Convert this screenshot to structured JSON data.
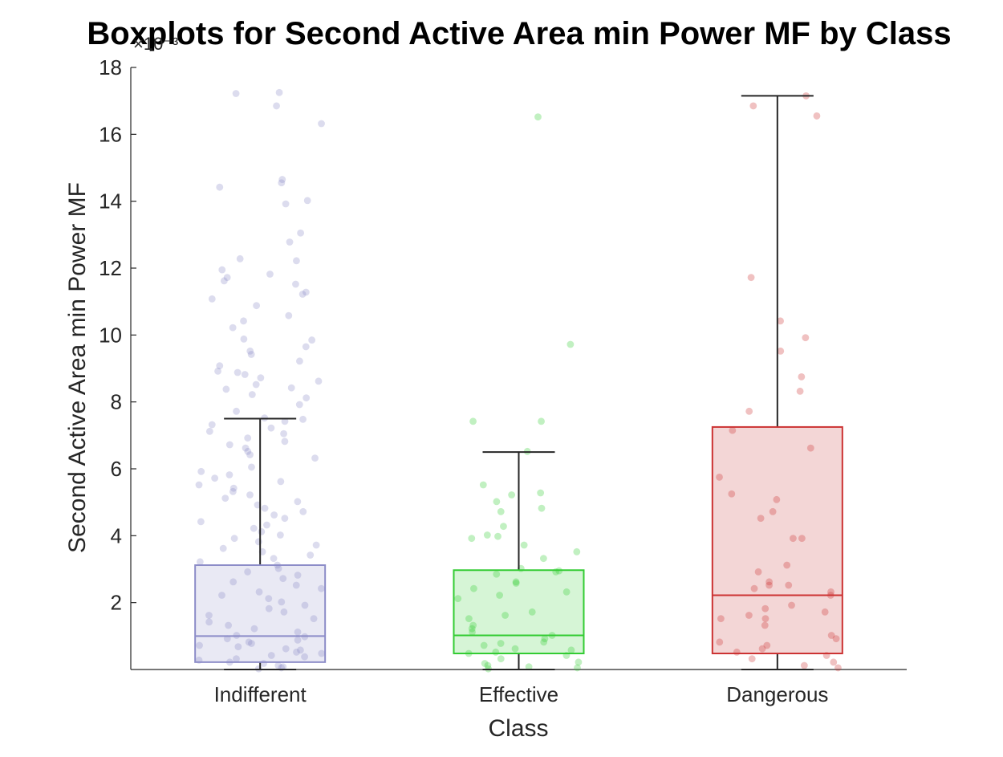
{
  "chart_data": {
    "type": "boxplot",
    "title": "Boxplots for Second Active Area min Power MF by Class",
    "xlabel": "Class",
    "ylabel": "Second Active Area min Power MF",
    "y_exponent_label": "×10⁻³",
    "y_scale_factor": 0.001,
    "ylim": [
      0,
      18
    ],
    "yticks": [
      2,
      4,
      6,
      8,
      10,
      12,
      14,
      16,
      18
    ],
    "categories": [
      "Indifferent",
      "Effective",
      "Dangerous"
    ],
    "grid": false,
    "series": [
      {
        "category": "Indifferent",
        "color": "#8c8cc8",
        "fill": "#e9e9f4",
        "whisker_low": 0.0,
        "q1": 0.22,
        "median": 1.0,
        "q3": 3.12,
        "whisker_high": 7.5,
        "points": [
          17.25,
          17.22,
          16.85,
          16.32,
          14.65,
          14.55,
          14.42,
          14.02,
          13.92,
          13.05,
          12.78,
          12.28,
          12.22,
          11.95,
          11.82,
          11.72,
          11.62,
          11.52,
          11.28,
          11.22,
          11.08,
          10.88,
          10.58,
          10.42,
          10.22,
          9.88,
          9.85,
          9.65,
          9.52,
          9.42,
          9.22,
          9.08,
          8.92,
          8.88,
          8.82,
          8.72,
          8.62,
          8.52,
          8.42,
          8.38,
          8.22,
          8.12,
          7.92,
          7.72,
          7.52,
          7.48,
          7.42,
          7.32,
          7.22,
          7.12,
          7.05,
          6.92,
          6.82,
          6.72,
          6.62,
          6.52,
          6.42,
          6.32,
          6.05,
          5.92,
          5.82,
          5.72,
          5.62,
          5.52,
          5.42,
          5.32,
          5.22,
          5.12,
          5.02,
          4.92,
          4.82,
          4.72,
          4.62,
          4.52,
          4.42,
          4.32,
          4.22,
          4.12,
          4.02,
          3.92,
          3.82,
          3.72,
          3.62,
          3.52,
          3.42,
          3.32,
          3.22,
          3.12,
          3.02,
          2.92,
          2.82,
          2.72,
          2.62,
          2.52,
          2.42,
          2.32,
          2.22,
          2.12,
          2.02,
          1.92,
          1.82,
          1.72,
          1.62,
          1.52,
          1.42,
          1.32,
          1.22,
          1.12,
          1.02,
          0.98,
          0.92,
          0.88,
          0.82,
          0.78,
          0.72,
          0.68,
          0.62,
          0.58,
          0.52,
          0.48,
          0.42,
          0.38,
          0.32,
          0.28,
          0.22,
          0.18,
          0.12,
          0.08,
          0.05,
          0.02
        ]
      },
      {
        "category": "Effective",
        "color": "#33cc33",
        "fill": "#d6f5d6",
        "whisker_low": 0.0,
        "q1": 0.48,
        "median": 1.02,
        "q3": 2.97,
        "whisker_high": 6.5,
        "points": [
          16.52,
          9.72,
          7.42,
          7.42,
          6.52,
          5.52,
          5.28,
          5.22,
          5.02,
          4.82,
          4.72,
          4.28,
          4.02,
          3.98,
          3.92,
          3.72,
          3.52,
          3.32,
          3.02,
          2.95,
          2.92,
          2.85,
          2.62,
          2.58,
          2.42,
          2.32,
          2.22,
          2.12,
          1.72,
          1.62,
          1.52,
          1.32,
          1.22,
          1.12,
          1.02,
          0.92,
          0.82,
          0.78,
          0.72,
          0.62,
          0.58,
          0.52,
          0.48,
          0.42,
          0.32,
          0.22,
          0.18,
          0.12,
          0.08,
          0.05,
          0.02
        ]
      },
      {
        "category": "Dangerous",
        "color": "#cc3333",
        "fill": "#f3d6d6",
        "whisker_low": 0.0,
        "q1": 0.48,
        "median": 2.22,
        "q3": 7.25,
        "whisker_high": 17.15,
        "points": [
          17.15,
          16.85,
          16.55,
          11.72,
          10.42,
          9.92,
          9.52,
          8.75,
          8.32,
          7.72,
          7.15,
          6.62,
          5.75,
          5.25,
          5.08,
          4.72,
          4.52,
          3.92,
          3.92,
          3.12,
          2.92,
          2.62,
          2.52,
          2.52,
          2.42,
          2.32,
          2.22,
          1.92,
          1.82,
          1.72,
          1.62,
          1.52,
          1.52,
          1.32,
          1.02,
          0.92,
          0.82,
          0.72,
          0.62,
          0.52,
          0.42,
          0.32,
          0.22,
          0.12,
          0.05
        ]
      }
    ]
  }
}
